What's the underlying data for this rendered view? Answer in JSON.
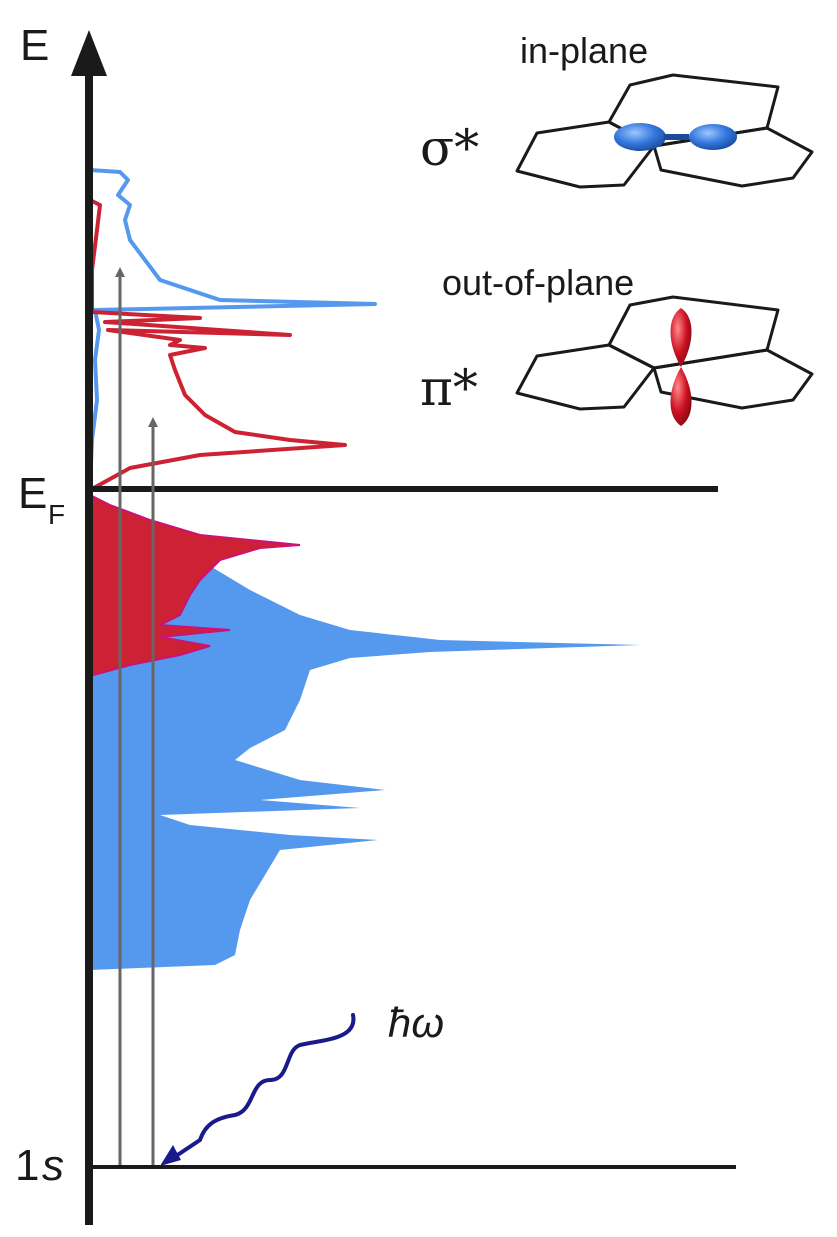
{
  "labels": {
    "energy_axis": "E",
    "fermi_main": "E",
    "fermi_sub": "F",
    "core_level_main": "1",
    "core_level_sub": "s",
    "photon": "ħω",
    "sigma_star": "σ*",
    "pi_star": "π*",
    "in_plane": "in-plane",
    "out_of_plane": "out-of-plane"
  },
  "colors": {
    "axis": "#1a1a1a",
    "in_plane_dos": "#5599ee",
    "out_of_plane_dos": "#cc2233",
    "filled_edge": "#cc1177",
    "transition_arrows": "#666666",
    "photon_wave": "#1a1a8c",
    "sigma_orbital": "#3377dd",
    "pi_orbital": "#cc1122"
  },
  "icons": {
    "sigma_orbital": "in-plane-p-orbital-on-hexagonal-lattice",
    "pi_orbital": "out-of-plane-p-orbital-on-hexagonal-lattice",
    "photon": "wavy-photon-arrow"
  }
}
